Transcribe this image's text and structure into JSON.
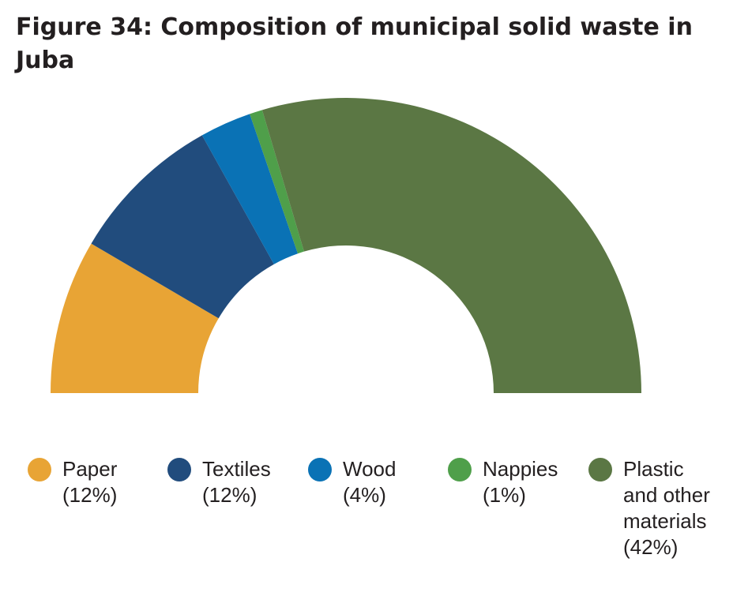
{
  "title": "Figure 34: Composition of municipal solid waste in Juba",
  "chart_data": {
    "type": "pie",
    "variant": "semi-donut",
    "title": "Figure 34: Composition of municipal solid waste in Juba",
    "legend_position": "bottom",
    "series": [
      {
        "name": "Paper",
        "value": 12,
        "label_pct": "(12%)",
        "color": "#e8a435"
      },
      {
        "name": "Textiles",
        "value": 12,
        "label_pct": "(12%)",
        "color": "#214c7d"
      },
      {
        "name": "Wood",
        "value": 4,
        "label_pct": "(4%)",
        "color": "#0a72b5"
      },
      {
        "name": "Nappies",
        "value": 1,
        "label_pct": "(1%)",
        "color": "#4f9f4a"
      },
      {
        "name": "Plastic and other materials",
        "value": 42,
        "label_pct": "(42%)",
        "color": "#5b7744"
      }
    ]
  }
}
